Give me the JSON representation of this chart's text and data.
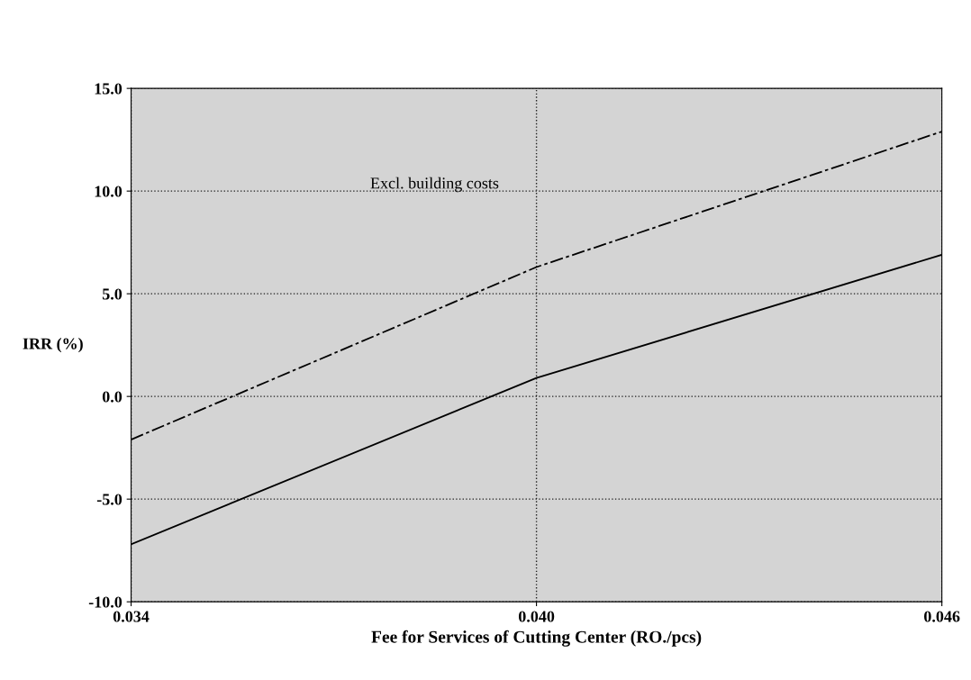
{
  "chart_data": {
    "type": "line",
    "xlabel": "Fee for Services of Cutting Center (RO./pcs)",
    "ylabel": "IRR (%)",
    "x": [
      0.034,
      0.04,
      0.046
    ],
    "series": [
      {
        "name": "Excl. building costs",
        "color": "#000000",
        "line_style": "dashed",
        "values": [
          -2.1,
          6.3,
          12.9
        ]
      },
      {
        "color": "#000000",
        "line_style": "solid",
        "values": [
          -7.2,
          0.9,
          6.9
        ]
      }
    ],
    "xlim": [
      0.034,
      0.046
    ],
    "xticks": [
      {
        "value": 0.034,
        "label": "0.034"
      },
      {
        "value": 0.04,
        "label": "0.040"
      },
      {
        "value": 0.046,
        "label": "0.046"
      }
    ],
    "ylim": [
      -10,
      15
    ],
    "yticks": [
      {
        "value": -10,
        "label": "-10.0"
      },
      {
        "value": -5,
        "label": "-5.0"
      },
      {
        "value": 0,
        "label": "0.0"
      },
      {
        "value": 5,
        "label": "5.0"
      },
      {
        "value": 10,
        "label": "10.0"
      },
      {
        "value": 15,
        "label": "15.0"
      }
    ],
    "grid": true,
    "legend": false,
    "marker": "none"
  }
}
